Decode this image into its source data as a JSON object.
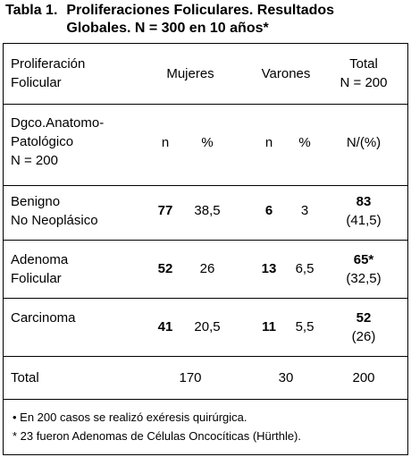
{
  "title": {
    "label": "Tabla 1.",
    "text": "Proliferaciones Foliculares. Resultados\nGlobales. N = 300 en 10 años*"
  },
  "table": {
    "header": [
      "Proliferación\nFolicular",
      "Mujeres",
      "Varones",
      "Total\nN = 200"
    ],
    "subheader": [
      "Dgco.Anatomo-\nPatológico\nN = 200",
      "n",
      "%",
      "n",
      "%",
      "N/(%)"
    ],
    "rows": [
      [
        "Benigno\nNo Neoplásico",
        "77",
        "38,5",
        "6",
        "3",
        "83",
        "(41,5)"
      ],
      [
        "Adenoma\nFolicular",
        "52",
        "26",
        "13",
        "6,5",
        "65*",
        "(32,5)"
      ],
      [
        "Carcinoma",
        "41",
        "20,5",
        "11",
        "5,5",
        "52",
        "(26)"
      ]
    ],
    "total_row": [
      "Total",
      "170",
      "30",
      "200"
    ]
  },
  "footnotes": [
    "•  En 200 casos se realizó exéresis quirúrgica.",
    "*  23 fueron Adenomas de Células Oncocíticas (Hürthle)."
  ]
}
